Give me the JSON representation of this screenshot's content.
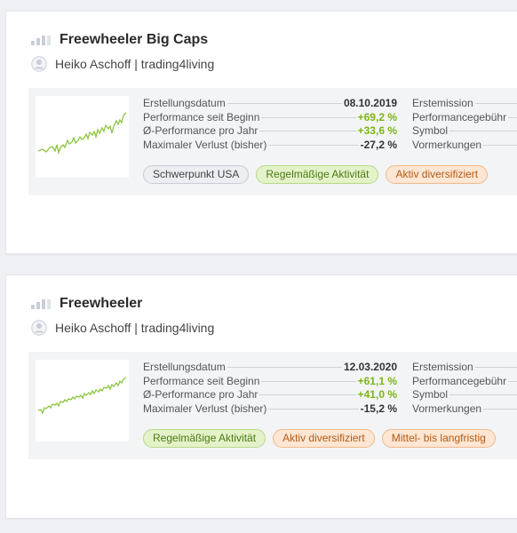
{
  "strategies": [
    {
      "title": "Freewheeler Big Caps",
      "author": "Heiko Aschoff | trading4living",
      "stats": [
        {
          "label": "Erstellungsdatum",
          "value": "08.10.2019",
          "positive": false
        },
        {
          "label": "Performance seit Beginn",
          "value": "+69,2 %",
          "positive": true
        },
        {
          "label": "Ø-Performance pro Jahr",
          "value": "+33,6 %",
          "positive": true
        },
        {
          "label": "Maximaler Verlust (bisher)",
          "value": "-27,2 %",
          "positive": false
        }
      ],
      "stats_right": [
        "Erstemission",
        "Performancegebühr",
        "Symbol",
        "Vormerkungen"
      ],
      "tags": [
        {
          "label": "Schwerpunkt USA",
          "color": "grey"
        },
        {
          "label": "Regelmäßige Aktivität",
          "color": "green"
        },
        {
          "label": "Aktiv diversifiziert",
          "color": "orange"
        }
      ]
    },
    {
      "title": "Freewheeler",
      "author": "Heiko Aschoff | trading4living",
      "stats": [
        {
          "label": "Erstellungsdatum",
          "value": "12.03.2020",
          "positive": false
        },
        {
          "label": "Performance seit Beginn",
          "value": "+61,1 %",
          "positive": true
        },
        {
          "label": "Ø-Performance pro Jahr",
          "value": "+41,0 %",
          "positive": true
        },
        {
          "label": "Maximaler Verlust (bisher)",
          "value": "-15,2 %",
          "positive": false
        }
      ],
      "stats_right": [
        "Erstemission",
        "Performancegebühr",
        "Symbol",
        "Vormerkungen"
      ],
      "tags": [
        {
          "label": "Regelmäßige Aktivität",
          "color": "green"
        },
        {
          "label": "Aktiv diversifiziert",
          "color": "orange"
        },
        {
          "label": "Mittel- bis langfristig",
          "color": "orange"
        }
      ]
    }
  ],
  "colors": {
    "positive": "#7cb518",
    "sparkline": "#8cc63f",
    "tag_green_bg": "#e4f2c9",
    "tag_orange_bg": "#fde6d3",
    "tag_grey_bg": "#eceef1"
  }
}
